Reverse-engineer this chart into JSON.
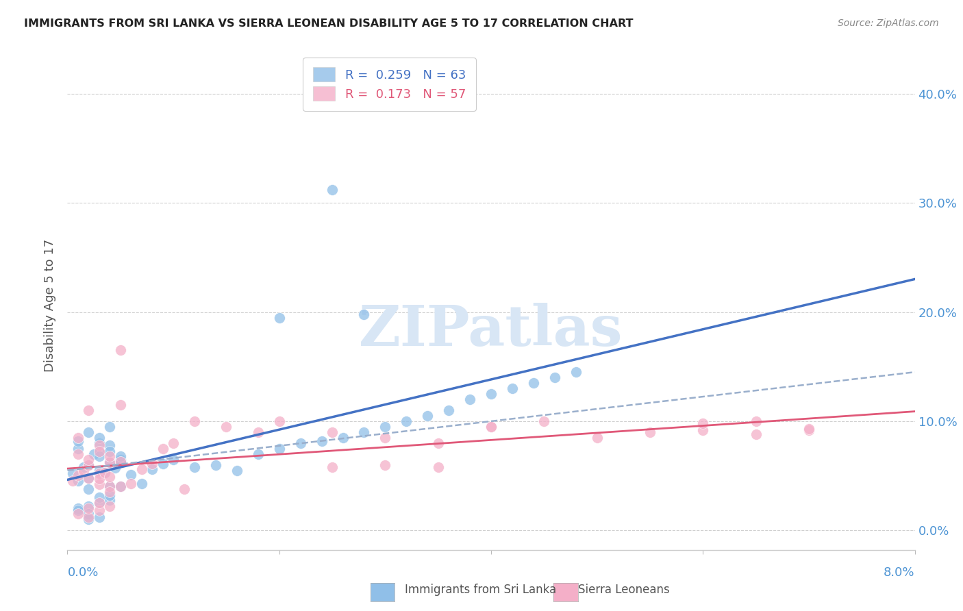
{
  "title": "IMMIGRANTS FROM SRI LANKA VS SIERRA LEONEAN DISABILITY AGE 5 TO 17 CORRELATION CHART",
  "source": "Source: ZipAtlas.com",
  "ylabel": "Disability Age 5 to 17",
  "x_min": 0.0,
  "x_max": 0.08,
  "y_min": -0.018,
  "y_max": 0.43,
  "legend1_R": "0.259",
  "legend1_N": "63",
  "legend2_R": "0.173",
  "legend2_N": "57",
  "sri_lanka_color": "#90bfe8",
  "sierra_leone_color": "#f4afc8",
  "trend_blue": "#4472c4",
  "trend_pink": "#e05878",
  "trend_gray_dashed": "#9aafcc",
  "axis_color": "#4d94d4",
  "title_color": "#222222",
  "watermark_color": "#d8e6f5",
  "grid_color": "#d0d0d0",
  "yticks": [
    0.0,
    0.1,
    0.2,
    0.3,
    0.4
  ],
  "ytick_labels": [
    "0.0%",
    "10.0%",
    "20.0%",
    "30.0%",
    "40.0%"
  ],
  "sri_lanka_x": [
    0.0005,
    0.001,
    0.0015,
    0.002,
    0.002,
    0.0025,
    0.003,
    0.003,
    0.003,
    0.0035,
    0.004,
    0.004,
    0.004,
    0.0045,
    0.005,
    0.005,
    0.006,
    0.007,
    0.008,
    0.009,
    0.001,
    0.001,
    0.002,
    0.002,
    0.003,
    0.003,
    0.004,
    0.004,
    0.005,
    0.005,
    0.01,
    0.012,
    0.014,
    0.016,
    0.018,
    0.02,
    0.022,
    0.024,
    0.026,
    0.028,
    0.03,
    0.032,
    0.034,
    0.036,
    0.038,
    0.04,
    0.042,
    0.044,
    0.046,
    0.048,
    0.001,
    0.002,
    0.003,
    0.004,
    0.002,
    0.001,
    0.003,
    0.004,
    0.002,
    0.003,
    0.02,
    0.025,
    0.028
  ],
  "sri_lanka_y": [
    0.052,
    0.045,
    0.058,
    0.06,
    0.048,
    0.07,
    0.055,
    0.072,
    0.08,
    0.053,
    0.062,
    0.04,
    0.095,
    0.057,
    0.065,
    0.063,
    0.051,
    0.043,
    0.056,
    0.061,
    0.075,
    0.082,
    0.038,
    0.09,
    0.068,
    0.085,
    0.078,
    0.072,
    0.04,
    0.068,
    0.065,
    0.058,
    0.06,
    0.055,
    0.07,
    0.075,
    0.08,
    0.082,
    0.085,
    0.09,
    0.095,
    0.1,
    0.105,
    0.11,
    0.12,
    0.125,
    0.13,
    0.135,
    0.14,
    0.145,
    0.02,
    0.022,
    0.025,
    0.028,
    0.015,
    0.018,
    0.03,
    0.032,
    0.01,
    0.012,
    0.195,
    0.312,
    0.198
  ],
  "sierra_leone_x": [
    0.0005,
    0.001,
    0.0015,
    0.002,
    0.002,
    0.003,
    0.003,
    0.003,
    0.0035,
    0.004,
    0.004,
    0.004,
    0.005,
    0.005,
    0.006,
    0.007,
    0.008,
    0.009,
    0.01,
    0.011,
    0.001,
    0.001,
    0.002,
    0.002,
    0.003,
    0.003,
    0.004,
    0.004,
    0.005,
    0.005,
    0.012,
    0.015,
    0.018,
    0.02,
    0.025,
    0.03,
    0.035,
    0.04,
    0.045,
    0.05,
    0.055,
    0.06,
    0.065,
    0.07,
    0.002,
    0.003,
    0.004,
    0.001,
    0.002,
    0.003,
    0.025,
    0.03,
    0.035,
    0.04,
    0.06,
    0.065,
    0.07
  ],
  "sierra_leone_y": [
    0.045,
    0.05,
    0.055,
    0.048,
    0.06,
    0.052,
    0.042,
    0.047,
    0.053,
    0.062,
    0.04,
    0.049,
    0.063,
    0.04,
    0.043,
    0.056,
    0.061,
    0.075,
    0.08,
    0.038,
    0.085,
    0.07,
    0.11,
    0.065,
    0.078,
    0.072,
    0.035,
    0.068,
    0.115,
    0.165,
    0.1,
    0.095,
    0.09,
    0.1,
    0.09,
    0.085,
    0.08,
    0.095,
    0.1,
    0.085,
    0.09,
    0.092,
    0.088,
    0.092,
    0.012,
    0.018,
    0.022,
    0.015,
    0.02,
    0.025,
    0.058,
    0.06,
    0.058,
    0.095,
    0.098,
    0.1,
    0.093
  ]
}
